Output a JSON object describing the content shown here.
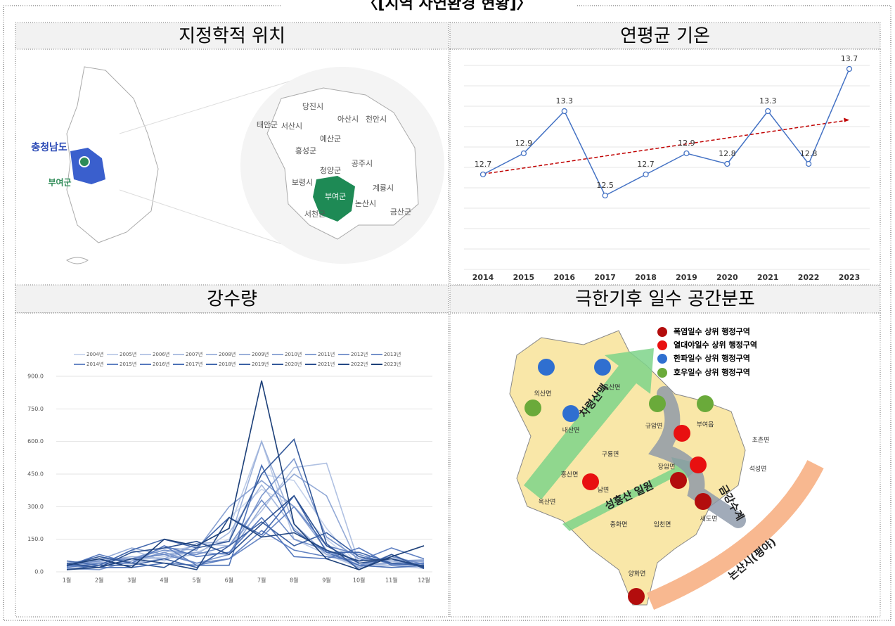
{
  "title": "〈[지역 자연환경 현황]〉",
  "panel_titles": [
    "지정학적 위치",
    "연평균 기온",
    "강수량",
    "극한기후 일수 공간분포"
  ],
  "location_map": {
    "region": "충청남도",
    "county": "부여군",
    "cities": [
      "당진시",
      "아산시",
      "천안시",
      "태안군",
      "서산시",
      "예산군",
      "홍성군",
      "공주시",
      "청양군",
      "보령시",
      "부여군",
      "계룡시",
      "논산시",
      "서천군",
      "금산군"
    ]
  },
  "extreme_map": {
    "legend": [
      "폭염일수 상위 행정구역",
      "열대야일수 상위 행정구역",
      "한파일수 상위 행정구역",
      "호우일수 상위 행정구역"
    ],
    "towns": [
      "외산면",
      "은산면",
      "내산면",
      "규암면",
      "부여읍",
      "초촌면",
      "구룡면",
      "홍산면",
      "장암면",
      "석성면",
      "남면",
      "옥산면",
      "충화면",
      "임천면",
      "세도면",
      "양화면"
    ],
    "features": [
      "차령산맥",
      "성흥산 일원",
      "금강수계",
      "논산시(평야)"
    ]
  },
  "chart_data": [
    {
      "type": "line",
      "categories": [
        "2014",
        "2015",
        "2016",
        "2017",
        "2018",
        "2019",
        "2020",
        "2021",
        "2022",
        "2023"
      ],
      "values": [
        12.7,
        12.9,
        13.3,
        12.5,
        12.7,
        12.9,
        12.8,
        13.3,
        12.8,
        13.7
      ],
      "color": "#4472c4",
      "trend_color": "#c00000",
      "ylim": [
        11.8,
        13.8
      ]
    },
    {
      "type": "line",
      "categories": [
        "1월",
        "2월",
        "3월",
        "4월",
        "5월",
        "6월",
        "7월",
        "8월",
        "9월",
        "10월",
        "11월",
        "12월"
      ],
      "ylim": [
        0,
        900
      ],
      "yticks": [
        {
          "value": 0,
          "label": "0.0"
        },
        {
          "value": 150,
          "label": "150.0"
        },
        {
          "value": 300,
          "label": "300.0"
        },
        {
          "value": 450,
          "label": "450.0"
        },
        {
          "value": 600,
          "label": "600.0"
        },
        {
          "value": 750,
          "label": "750.0"
        },
        {
          "value": 900,
          "label": "900.0"
        }
      ],
      "series": [
        {
          "name": "2004년",
          "color": "#cdd9ee",
          "values": [
            30,
            40,
            60,
            80,
            110,
            250,
            380,
            300,
            150,
            30,
            40,
            20
          ]
        },
        {
          "name": "2005년",
          "color": "#c4d1ea",
          "values": [
            20,
            30,
            50,
            70,
            90,
            150,
            450,
            420,
            200,
            25,
            30,
            15
          ]
        },
        {
          "name": "2006년",
          "color": "#bac9e6",
          "values": [
            40,
            35,
            40,
            90,
            120,
            200,
            600,
            150,
            80,
            20,
            50,
            30
          ]
        },
        {
          "name": "2007년",
          "color": "#b0c1e2",
          "values": [
            25,
            30,
            100,
            50,
            130,
            120,
            280,
            480,
            500,
            40,
            30,
            25
          ]
        },
        {
          "name": "2008년",
          "color": "#a6b9de",
          "values": [
            20,
            45,
            40,
            60,
            80,
            180,
            400,
            200,
            80,
            30,
            20,
            25
          ]
        },
        {
          "name": "2009년",
          "color": "#9cb1da",
          "values": [
            30,
            50,
            70,
            60,
            130,
            140,
            600,
            220,
            80,
            50,
            60,
            45
          ]
        },
        {
          "name": "2010년",
          "color": "#92a9d6",
          "values": [
            35,
            55,
            110,
            80,
            90,
            80,
            300,
            450,
            350,
            30,
            40,
            50
          ]
        },
        {
          "name": "2011년",
          "color": "#88a1d2",
          "values": [
            40,
            60,
            60,
            110,
            100,
            300,
            420,
            300,
            100,
            20,
            80,
            20
          ]
        },
        {
          "name": "2012년",
          "color": "#7e99ce",
          "values": [
            15,
            10,
            50,
            90,
            40,
            80,
            350,
            520,
            160,
            60,
            50,
            55
          ]
        },
        {
          "name": "2013년",
          "color": "#7491ca",
          "values": [
            30,
            50,
            60,
            100,
            80,
            120,
            330,
            150,
            100,
            30,
            70,
            35
          ]
        },
        {
          "name": "2014년",
          "color": "#6a89c6",
          "values": [
            35,
            20,
            60,
            80,
            40,
            60,
            160,
            300,
            120,
            80,
            35,
            40
          ]
        },
        {
          "name": "2015년",
          "color": "#6081c2",
          "values": [
            20,
            40,
            40,
            120,
            30,
            60,
            190,
            100,
            70,
            50,
            110,
            60
          ]
        },
        {
          "name": "2016년",
          "color": "#5679be",
          "values": [
            25,
            80,
            40,
            120,
            70,
            90,
            250,
            70,
            60,
            110,
            30,
            40
          ]
        },
        {
          "name": "2017년",
          "color": "#4c71b6",
          "values": [
            30,
            20,
            20,
            40,
            30,
            30,
            490,
            190,
            90,
            30,
            20,
            30
          ]
        },
        {
          "name": "2018년",
          "color": "#4469ae",
          "values": [
            50,
            30,
            100,
            150,
            110,
            250,
            170,
            350,
            90,
            90,
            40,
            30
          ]
        },
        {
          "name": "2019년",
          "color": "#3c61a4",
          "values": [
            10,
            30,
            30,
            60,
            20,
            120,
            230,
            120,
            180,
            70,
            40,
            30
          ]
        },
        {
          "name": "2020년",
          "color": "#34599a",
          "values": [
            30,
            70,
            40,
            20,
            110,
            140,
            450,
            610,
            130,
            10,
            80,
            15
          ]
        },
        {
          "name": "2021년",
          "color": "#2c5090",
          "values": [
            40,
            20,
            90,
            110,
            140,
            80,
            220,
            350,
            120,
            40,
            60,
            20
          ]
        },
        {
          "name": "2022년",
          "color": "#244884",
          "values": [
            10,
            20,
            60,
            40,
            10,
            250,
            160,
            180,
            100,
            50,
            60,
            25
          ]
        },
        {
          "name": "2023년",
          "color": "#1c3f78",
          "values": [
            30,
            60,
            20,
            150,
            120,
            200,
            880,
            220,
            60,
            10,
            70,
            120
          ]
        }
      ]
    }
  ]
}
